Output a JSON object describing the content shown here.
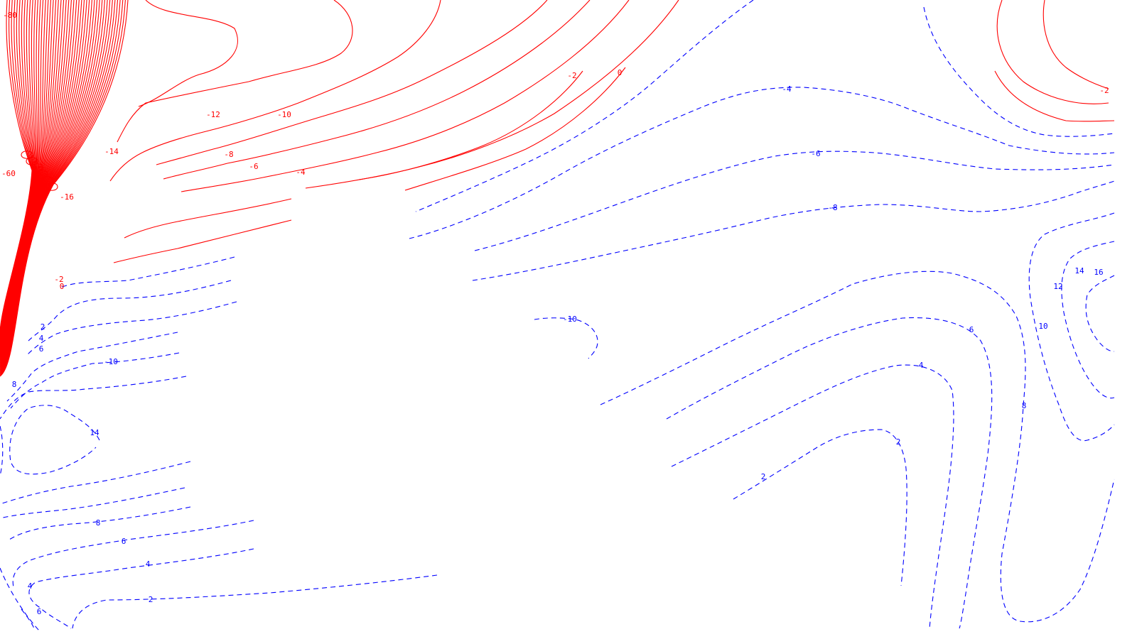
{
  "chart_data": {
    "type": "contour",
    "title": "",
    "xlabel": "",
    "ylabel": "",
    "grid": false,
    "legend": "none",
    "colors": {
      "negative": "#ff0000",
      "positive": "#0000ff"
    },
    "line_styles": {
      "negative": "solid",
      "positive": "dashed"
    },
    "level_labels": [
      "-80",
      "-60",
      "-16",
      "-14",
      "-12",
      "-10",
      "-8",
      "-6",
      "-4",
      "-2",
      "0",
      "-2",
      "0",
      "-2",
      "-4",
      "-6",
      "-8",
      "-10",
      "2",
      "4",
      "6",
      "8",
      "14",
      "8",
      "6",
      "4",
      "2",
      "6",
      "4",
      "-10",
      "14",
      "16",
      "12",
      "10",
      "8",
      "6",
      "4",
      "2",
      "2"
    ]
  }
}
